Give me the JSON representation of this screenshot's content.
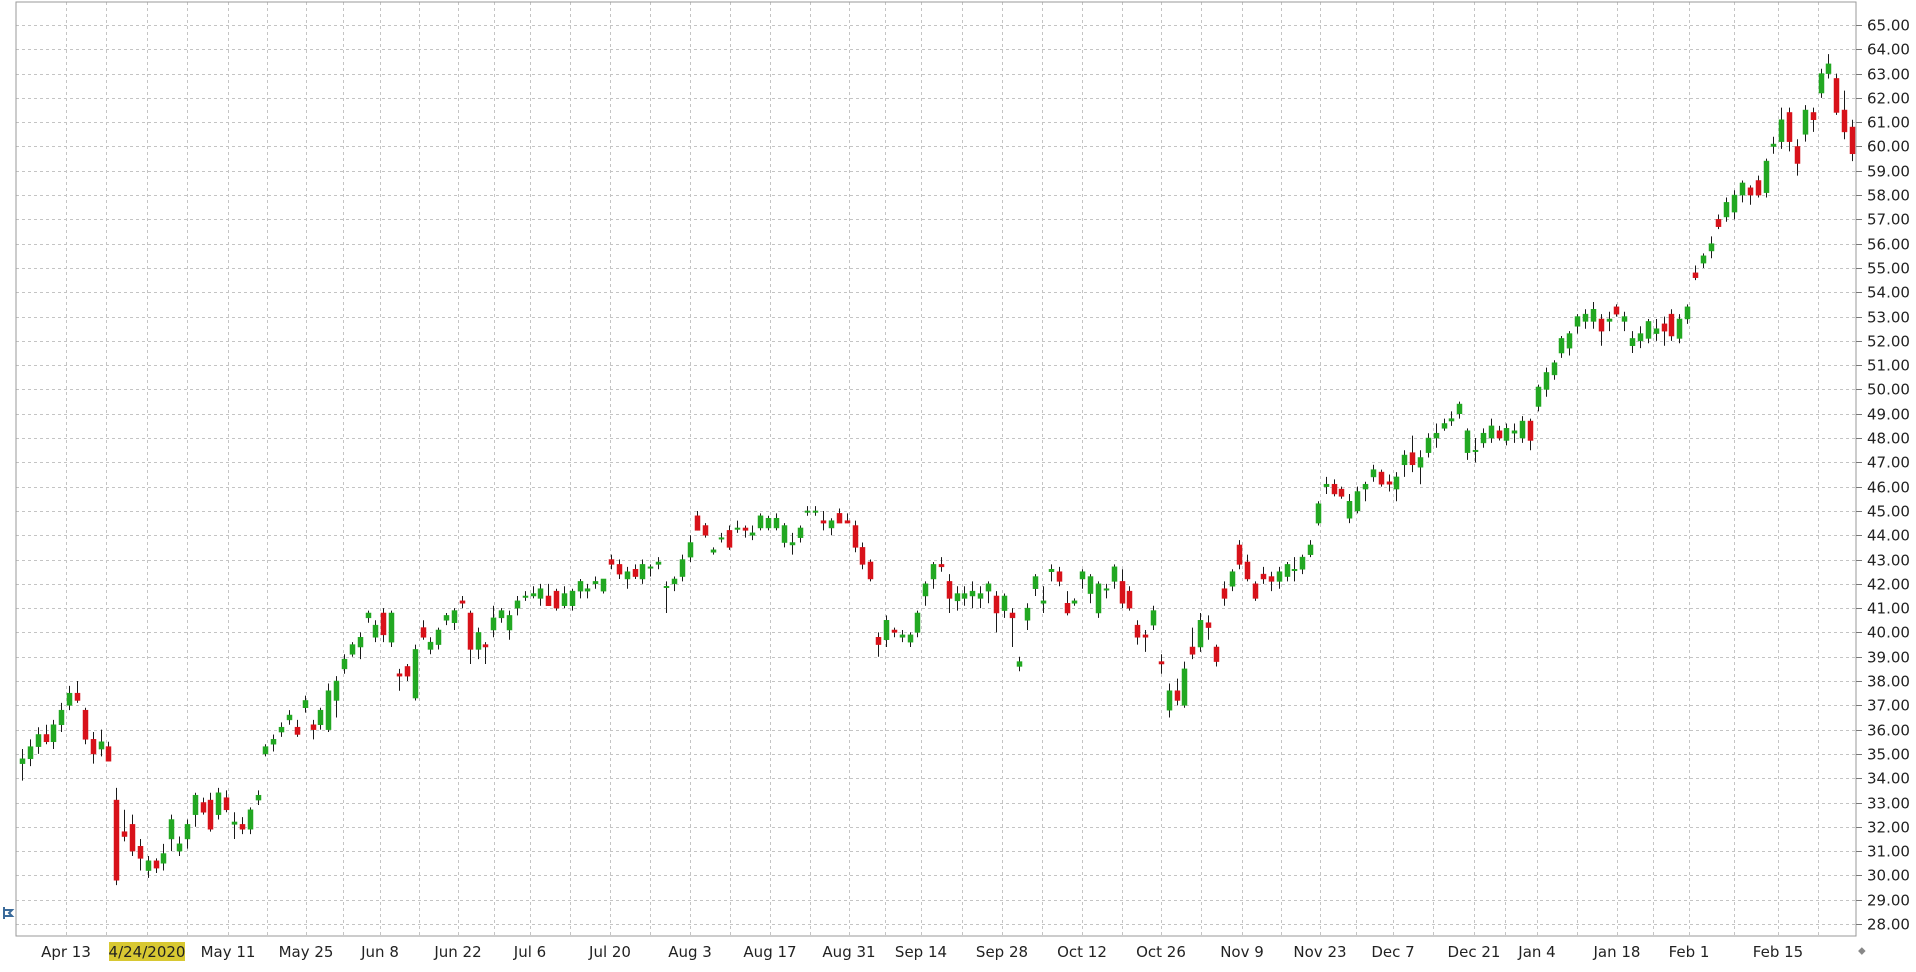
{
  "chart_data": {
    "type": "candlestick",
    "title": "",
    "xlabel": "",
    "ylabel": "",
    "ylim": [
      27.0,
      65.9
    ],
    "y_ticks": [
      "28.00",
      "29.00",
      "30.00",
      "31.00",
      "32.00",
      "33.00",
      "34.00",
      "35.00",
      "36.00",
      "37.00",
      "38.00",
      "39.00",
      "40.00",
      "41.00",
      "42.00",
      "43.00",
      "44.00",
      "45.00",
      "46.00",
      "47.00",
      "48.00",
      "49.00",
      "50.00",
      "51.00",
      "52.00",
      "53.00",
      "54.00",
      "55.00",
      "56.00",
      "57.00",
      "58.00",
      "59.00",
      "60.00",
      "61.00",
      "62.00",
      "63.00",
      "64.00",
      "65.00"
    ],
    "x_ticks": [
      "Apr 13",
      "4/24/2020",
      "May 11",
      "May 25",
      "Jun 8",
      "Jun 22",
      "Jul 6",
      "Jul 20",
      "Aug 3",
      "Aug 17",
      "Aug 31",
      "Sep 14",
      "Sep 28",
      "Oct 12",
      "Oct 26",
      "Nov 9",
      "Nov 23",
      "Dec 7",
      "Dec 21",
      "Jan 4",
      "Jan 18",
      "Feb 1",
      "Feb 15"
    ],
    "highlighted_tick": "4/24/2020",
    "grid": true,
    "up_color": "#22a822",
    "down_color": "#d8121a",
    "candles": [
      [
        34.6,
        35.2,
        33.9,
        34.8
      ],
      [
        34.8,
        35.6,
        34.5,
        35.3
      ],
      [
        35.3,
        36.1,
        35.0,
        35.8
      ],
      [
        35.8,
        36.2,
        35.4,
        35.5
      ],
      [
        35.5,
        36.4,
        35.2,
        36.2
      ],
      [
        36.2,
        37.1,
        35.9,
        36.8
      ],
      [
        37.0,
        37.8,
        36.8,
        37.5
      ],
      [
        37.5,
        38.0,
        37.1,
        37.2
      ],
      [
        36.8,
        36.9,
        35.4,
        35.6
      ],
      [
        35.6,
        35.9,
        34.6,
        35.0
      ],
      [
        35.2,
        36.0,
        34.9,
        35.5
      ],
      [
        35.3,
        35.5,
        34.7,
        34.7
      ],
      [
        33.1,
        33.6,
        29.6,
        29.8
      ],
      [
        31.8,
        32.7,
        31.4,
        31.6
      ],
      [
        32.1,
        32.5,
        30.8,
        31.0
      ],
      [
        31.2,
        31.5,
        30.2,
        30.7
      ],
      [
        30.2,
        30.8,
        29.9,
        30.6
      ],
      [
        30.6,
        30.7,
        30.1,
        30.3
      ],
      [
        30.5,
        31.3,
        30.2,
        30.9
      ],
      [
        31.5,
        32.5,
        31.0,
        32.3
      ],
      [
        31.0,
        31.6,
        30.8,
        31.3
      ],
      [
        31.5,
        32.3,
        31.1,
        32.1
      ],
      [
        32.5,
        33.4,
        32.0,
        33.3
      ],
      [
        33.0,
        33.2,
        32.5,
        32.6
      ],
      [
        33.1,
        33.4,
        31.8,
        31.9
      ],
      [
        32.5,
        33.6,
        32.3,
        33.4
      ],
      [
        33.2,
        33.5,
        32.6,
        32.7
      ],
      [
        32.1,
        32.6,
        31.5,
        32.2
      ],
      [
        32.1,
        32.4,
        31.7,
        31.9
      ],
      [
        31.9,
        32.8,
        31.7,
        32.7
      ],
      [
        33.1,
        33.5,
        32.9,
        33.3
      ],
      [
        35.0,
        35.4,
        34.9,
        35.3
      ],
      [
        35.4,
        35.8,
        35.1,
        35.6
      ],
      [
        35.9,
        36.3,
        35.7,
        36.1
      ],
      [
        36.4,
        36.8,
        36.2,
        36.6
      ],
      [
        36.1,
        36.4,
        35.7,
        35.8
      ],
      [
        36.9,
        37.4,
        36.7,
        37.2
      ],
      [
        36.2,
        36.4,
        35.6,
        36.0
      ],
      [
        36.2,
        36.9,
        36.0,
        36.8
      ],
      [
        36.0,
        37.9,
        35.9,
        37.6
      ],
      [
        37.2,
        38.2,
        36.5,
        38.0
      ],
      [
        38.5,
        39.1,
        38.3,
        38.9
      ],
      [
        39.1,
        39.6,
        39.0,
        39.5
      ],
      [
        39.4,
        40.0,
        38.9,
        39.8
      ],
      [
        40.6,
        40.9,
        40.4,
        40.8
      ],
      [
        39.8,
        40.5,
        39.6,
        40.3
      ],
      [
        40.8,
        41.0,
        39.6,
        39.9
      ],
      [
        39.6,
        40.9,
        39.4,
        40.8
      ],
      [
        38.3,
        38.5,
        37.6,
        38.2
      ],
      [
        38.6,
        38.7,
        38.0,
        38.2
      ],
      [
        37.3,
        39.5,
        37.2,
        39.3
      ],
      [
        40.2,
        40.5,
        39.7,
        39.8
      ],
      [
        39.3,
        39.8,
        39.1,
        39.6
      ],
      [
        39.5,
        40.2,
        39.3,
        40.1
      ],
      [
        40.5,
        40.8,
        40.3,
        40.7
      ],
      [
        40.4,
        41.0,
        40.1,
        40.9
      ],
      [
        41.3,
        41.5,
        41.0,
        41.2
      ],
      [
        40.8,
        40.9,
        38.7,
        39.3
      ],
      [
        39.3,
        40.2,
        38.9,
        40.0
      ],
      [
        39.5,
        39.6,
        38.7,
        39.4
      ],
      [
        40.1,
        41.1,
        39.8,
        40.6
      ],
      [
        40.6,
        41.0,
        40.4,
        40.9
      ],
      [
        40.1,
        40.9,
        39.7,
        40.7
      ],
      [
        41.0,
        41.5,
        40.7,
        41.3
      ],
      [
        41.5,
        41.7,
        41.3,
        41.5
      ],
      [
        41.5,
        41.9,
        41.4,
        41.6
      ],
      [
        41.4,
        42.0,
        41.1,
        41.8
      ],
      [
        41.5,
        42.0,
        41.1,
        41.1
      ],
      [
        41.7,
        41.8,
        40.9,
        41.0
      ],
      [
        41.1,
        41.9,
        41.0,
        41.6
      ],
      [
        41.1,
        41.8,
        40.9,
        41.7
      ],
      [
        41.7,
        42.2,
        41.4,
        42.1
      ],
      [
        41.7,
        42.0,
        41.4,
        41.8
      ],
      [
        42.0,
        42.3,
        41.8,
        42.1
      ],
      [
        41.7,
        42.2,
        41.6,
        42.2
      ],
      [
        43.0,
        43.2,
        42.6,
        42.8
      ],
      [
        42.8,
        43.0,
        42.2,
        42.4
      ],
      [
        42.2,
        42.7,
        41.8,
        42.5
      ],
      [
        42.6,
        42.8,
        42.2,
        42.3
      ],
      [
        42.2,
        43.0,
        42.0,
        42.8
      ],
      [
        42.7,
        42.8,
        42.3,
        42.7
      ],
      [
        42.8,
        43.1,
        42.6,
        42.9
      ],
      [
        41.9,
        42.1,
        40.8,
        41.9
      ],
      [
        42.0,
        42.3,
        41.7,
        42.2
      ],
      [
        42.3,
        43.2,
        42.1,
        43.0
      ],
      [
        43.1,
        44.0,
        42.9,
        43.7
      ],
      [
        44.8,
        45.0,
        44.2,
        44.2
      ],
      [
        44.4,
        44.5,
        43.9,
        44.0
      ],
      [
        43.3,
        43.5,
        43.2,
        43.4
      ],
      [
        43.9,
        44.1,
        43.7,
        43.9
      ],
      [
        44.2,
        44.4,
        43.4,
        43.5
      ],
      [
        44.3,
        44.6,
        44.1,
        44.3
      ],
      [
        44.3,
        44.4,
        43.9,
        44.2
      ],
      [
        44.0,
        44.4,
        43.8,
        44.1
      ],
      [
        44.3,
        44.9,
        44.2,
        44.8
      ],
      [
        44.3,
        44.8,
        44.2,
        44.7
      ],
      [
        44.3,
        44.9,
        44.2,
        44.7
      ],
      [
        43.7,
        44.5,
        43.5,
        44.4
      ],
      [
        43.6,
        44.1,
        43.2,
        43.7
      ],
      [
        43.9,
        44.4,
        43.7,
        44.3
      ],
      [
        45.0,
        45.2,
        44.8,
        45.0
      ],
      [
        45.0,
        45.2,
        44.8,
        45.0
      ],
      [
        44.6,
        45.0,
        44.2,
        44.5
      ],
      [
        44.3,
        44.7,
        44.0,
        44.6
      ],
      [
        44.9,
        45.1,
        44.6,
        44.5
      ],
      [
        44.6,
        44.9,
        44.5,
        44.5
      ],
      [
        44.4,
        44.6,
        43.3,
        43.5
      ],
      [
        43.5,
        43.7,
        42.6,
        42.8
      ],
      [
        42.9,
        43.0,
        42.1,
        42.2
      ],
      [
        39.8,
        40.0,
        39.0,
        39.5
      ],
      [
        39.7,
        40.7,
        39.4,
        40.5
      ],
      [
        40.1,
        40.2,
        39.8,
        40.0
      ],
      [
        39.8,
        40.1,
        39.6,
        39.9
      ],
      [
        39.6,
        40.0,
        39.4,
        39.9
      ],
      [
        40.0,
        40.9,
        39.8,
        40.8
      ],
      [
        41.5,
        42.1,
        41.1,
        42.0
      ],
      [
        42.2,
        42.9,
        41.8,
        42.8
      ],
      [
        42.8,
        43.1,
        42.5,
        42.7
      ],
      [
        42.1,
        42.4,
        40.8,
        41.4
      ],
      [
        41.3,
        41.9,
        40.9,
        41.6
      ],
      [
        41.4,
        41.9,
        41.1,
        41.6
      ],
      [
        41.5,
        42.1,
        41.0,
        41.7
      ],
      [
        41.4,
        41.9,
        41.0,
        41.6
      ],
      [
        41.7,
        42.1,
        41.2,
        42.0
      ],
      [
        41.5,
        41.7,
        40.0,
        40.8
      ],
      [
        40.9,
        41.6,
        40.6,
        41.5
      ],
      [
        40.8,
        41.0,
        39.4,
        40.6
      ],
      [
        38.6,
        39.0,
        38.4,
        38.8
      ],
      [
        40.5,
        41.2,
        40.1,
        41.0
      ],
      [
        41.8,
        42.4,
        41.5,
        42.3
      ],
      [
        41.2,
        41.9,
        40.8,
        41.3
      ],
      [
        42.5,
        42.8,
        42.1,
        42.6
      ],
      [
        42.5,
        42.7,
        41.9,
        42.1
      ],
      [
        41.2,
        41.7,
        40.7,
        40.8
      ],
      [
        41.2,
        41.4,
        41.1,
        41.3
      ],
      [
        42.2,
        42.6,
        41.8,
        42.5
      ],
      [
        41.6,
        42.4,
        41.2,
        42.3
      ],
      [
        40.8,
        42.1,
        40.6,
        42.0
      ],
      [
        41.8,
        42.0,
        41.4,
        41.8
      ],
      [
        42.1,
        42.8,
        41.8,
        42.7
      ],
      [
        42.1,
        42.6,
        41.0,
        41.2
      ],
      [
        41.7,
        41.9,
        40.9,
        41.0
      ],
      [
        40.3,
        40.5,
        39.5,
        39.8
      ],
      [
        39.9,
        40.1,
        39.2,
        39.8
      ],
      [
        40.3,
        41.1,
        40.1,
        40.9
      ],
      [
        38.8,
        39.1,
        38.3,
        38.7
      ],
      [
        36.8,
        37.9,
        36.5,
        37.6
      ],
      [
        37.6,
        38.1,
        37.0,
        37.2
      ],
      [
        37.0,
        38.8,
        36.9,
        38.5
      ],
      [
        39.4,
        40.2,
        38.9,
        39.1
      ],
      [
        39.4,
        40.8,
        39.2,
        40.5
      ],
      [
        40.4,
        40.7,
        39.7,
        40.2
      ],
      [
        39.4,
        39.5,
        38.6,
        38.8
      ],
      [
        41.8,
        42.1,
        41.1,
        41.4
      ],
      [
        41.9,
        42.6,
        41.7,
        42.5
      ],
      [
        43.6,
        43.8,
        42.6,
        42.8
      ],
      [
        42.9,
        43.2,
        42.1,
        42.2
      ],
      [
        42.0,
        42.1,
        41.3,
        41.4
      ],
      [
        42.4,
        42.7,
        42.0,
        42.2
      ],
      [
        42.3,
        42.5,
        41.7,
        42.1
      ],
      [
        42.1,
        42.7,
        41.8,
        42.5
      ],
      [
        42.3,
        42.9,
        42.1,
        42.8
      ],
      [
        42.6,
        43.1,
        42.1,
        42.6
      ],
      [
        42.6,
        43.2,
        42.4,
        43.1
      ],
      [
        43.2,
        43.8,
        43.1,
        43.6
      ],
      [
        44.5,
        45.4,
        44.4,
        45.3
      ],
      [
        46.0,
        46.4,
        45.7,
        46.1
      ],
      [
        46.1,
        46.3,
        45.6,
        45.7
      ],
      [
        45.9,
        46.0,
        45.5,
        45.6
      ],
      [
        44.7,
        45.7,
        44.5,
        45.4
      ],
      [
        45.0,
        46.0,
        44.9,
        45.8
      ],
      [
        45.9,
        46.2,
        45.4,
        46.1
      ],
      [
        46.4,
        46.9,
        46.2,
        46.7
      ],
      [
        46.6,
        46.7,
        46.0,
        46.1
      ],
      [
        46.2,
        46.5,
        45.8,
        46.1
      ],
      [
        45.9,
        46.6,
        45.4,
        46.4
      ],
      [
        46.9,
        47.5,
        46.4,
        47.3
      ],
      [
        47.4,
        48.1,
        46.6,
        46.9
      ],
      [
        46.8,
        47.5,
        46.1,
        47.2
      ],
      [
        47.4,
        48.2,
        47.2,
        48.0
      ],
      [
        48.0,
        48.6,
        47.6,
        48.2
      ],
      [
        48.4,
        48.8,
        48.3,
        48.6
      ],
      [
        48.7,
        49.1,
        48.5,
        48.8
      ],
      [
        49.0,
        49.5,
        48.8,
        49.4
      ],
      [
        47.4,
        48.4,
        47.1,
        48.3
      ],
      [
        47.5,
        48.0,
        47.0,
        47.5
      ],
      [
        47.8,
        48.4,
        47.6,
        48.2
      ],
      [
        48.0,
        48.8,
        47.8,
        48.5
      ],
      [
        48.3,
        48.5,
        47.9,
        48.0
      ],
      [
        47.9,
        48.6,
        47.7,
        48.4
      ],
      [
        48.2,
        48.6,
        47.8,
        48.3
      ],
      [
        48.0,
        48.9,
        47.8,
        48.7
      ],
      [
        48.7,
        48.8,
        47.5,
        47.9
      ],
      [
        49.3,
        50.2,
        49.1,
        50.1
      ],
      [
        50.0,
        50.9,
        49.7,
        50.7
      ],
      [
        50.6,
        51.2,
        50.4,
        51.1
      ],
      [
        51.5,
        52.2,
        51.3,
        52.1
      ],
      [
        51.7,
        52.4,
        51.4,
        52.3
      ],
      [
        52.6,
        53.1,
        52.3,
        53.0
      ],
      [
        52.8,
        53.3,
        52.5,
        53.1
      ],
      [
        52.8,
        53.6,
        52.5,
        53.3
      ],
      [
        52.9,
        53.1,
        51.8,
        52.4
      ],
      [
        52.8,
        53.2,
        52.4,
        52.9
      ],
      [
        53.4,
        53.5,
        53.0,
        53.1
      ],
      [
        52.8,
        53.2,
        52.4,
        53.0
      ],
      [
        51.8,
        52.4,
        51.5,
        52.1
      ],
      [
        52.0,
        52.6,
        51.7,
        52.3
      ],
      [
        52.1,
        52.9,
        51.9,
        52.8
      ],
      [
        52.3,
        52.9,
        52.0,
        52.5
      ],
      [
        52.7,
        53.0,
        51.8,
        52.4
      ],
      [
        53.1,
        53.3,
        52.0,
        52.2
      ],
      [
        52.1,
        53.1,
        51.9,
        52.9
      ],
      [
        52.9,
        53.5,
        52.7,
        53.4
      ],
      [
        54.8,
        55.1,
        54.5,
        54.6
      ],
      [
        55.2,
        55.6,
        55.0,
        55.5
      ],
      [
        55.7,
        56.3,
        55.4,
        56.0
      ],
      [
        57.0,
        57.2,
        56.6,
        56.7
      ],
      [
        57.1,
        57.9,
        56.9,
        57.7
      ],
      [
        57.3,
        58.2,
        57.0,
        58.0
      ],
      [
        58.0,
        58.6,
        57.7,
        58.5
      ],
      [
        58.3,
        58.4,
        57.6,
        58.0
      ],
      [
        58.6,
        58.8,
        57.9,
        58.0
      ],
      [
        58.1,
        59.5,
        57.9,
        59.4
      ],
      [
        60.0,
        60.4,
        59.7,
        60.1
      ],
      [
        60.2,
        61.6,
        59.9,
        61.1
      ],
      [
        61.4,
        61.6,
        59.8,
        60.2
      ],
      [
        60.0,
        60.3,
        58.8,
        59.3
      ],
      [
        60.5,
        61.7,
        60.2,
        61.5
      ],
      [
        61.4,
        61.6,
        60.6,
        61.1
      ],
      [
        62.2,
        63.2,
        62.0,
        63.0
      ],
      [
        63.0,
        63.8,
        62.8,
        63.4
      ],
      [
        62.8,
        63.0,
        61.3,
        61.4
      ],
      [
        61.5,
        62.3,
        60.3,
        60.6
      ],
      [
        60.8,
        61.1,
        59.4,
        59.7
      ]
    ]
  },
  "ui": {
    "scroll_glyph": "⬥",
    "corner_icon": "cursor-tool-icon"
  }
}
